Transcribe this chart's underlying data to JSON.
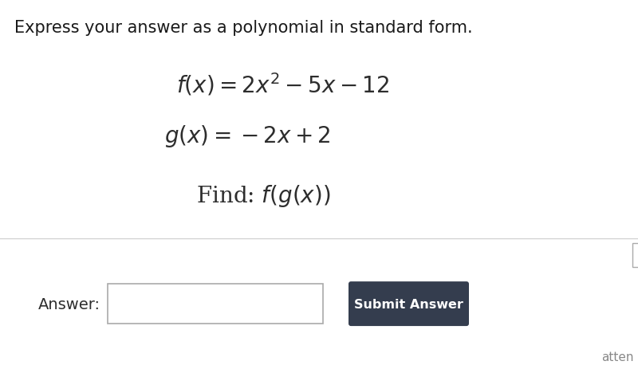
{
  "bg_color": "#ffffff",
  "bottom_panel_color": "#ebebeb",
  "bottom_panel_border": "#d0d0d0",
  "title_text": "Express your answer as a polynomial in standard form.",
  "title_fontsize": 15,
  "title_color": "#1a1a1a",
  "eq1": "$f(x) = 2x^2 - 5x - 12$",
  "eq2": "$g(x) = -2x + 2$",
  "find_text": "Find: $f(g(x))$",
  "eq_fontsize": 20,
  "find_fontsize": 20,
  "answer_label": "Answer:",
  "button_text": "Submit Answer",
  "button_color": "#343d4e",
  "button_text_color": "#ffffff",
  "text_color": "#2d2d2d",
  "corner_label": "atten"
}
